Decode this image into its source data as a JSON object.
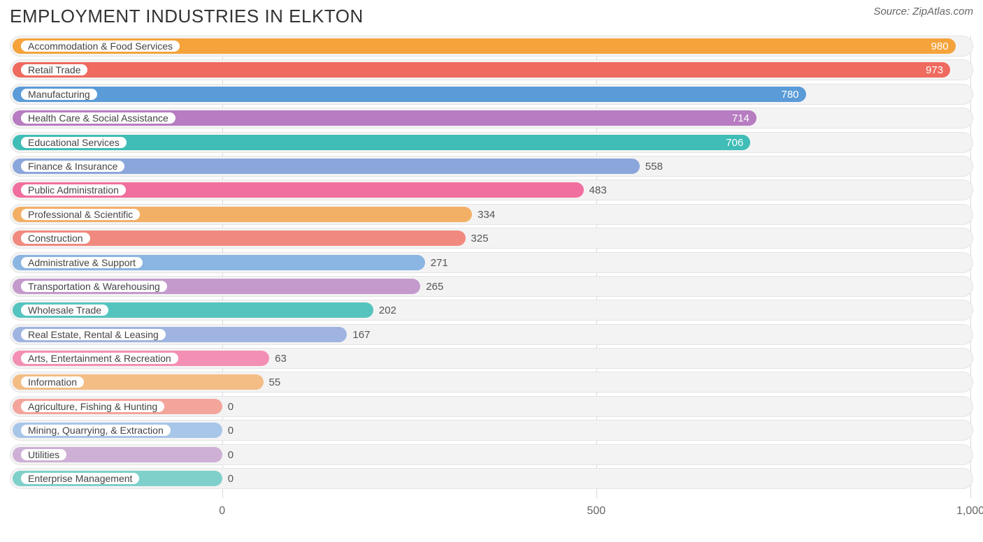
{
  "title": "EMPLOYMENT INDUSTRIES IN ELKTON",
  "source": "Source: ZipAtlas.com",
  "chart": {
    "type": "bar-horizontal",
    "background_color": "#ffffff",
    "track_bg": "#f3f3f3",
    "track_border": "#e4e4e4",
    "grid_color": "#d9d9d9",
    "bar_origin_value": -280,
    "x_ticks": [
      {
        "value": 0,
        "label": "0"
      },
      {
        "value": 500,
        "label": "500"
      },
      {
        "value": 1000,
        "label": "1,000"
      }
    ],
    "x_max_value": 1000,
    "label_fontsize": 14,
    "value_fontsize": 15,
    "title_fontsize": 26,
    "rows": [
      {
        "label": "Accommodation & Food Services",
        "value": 980,
        "color": "#f5a33b",
        "value_inside": true
      },
      {
        "label": "Retail Trade",
        "value": 973,
        "color": "#ef6a5f",
        "value_inside": true
      },
      {
        "label": "Manufacturing",
        "value": 780,
        "color": "#5a9bd8",
        "value_inside": true
      },
      {
        "label": "Health Care & Social Assistance",
        "value": 714,
        "color": "#b77cc1",
        "value_inside": true
      },
      {
        "label": "Educational Services",
        "value": 706,
        "color": "#3fbdb6",
        "value_inside": true
      },
      {
        "label": "Finance & Insurance",
        "value": 558,
        "color": "#8ba6db",
        "value_inside": false
      },
      {
        "label": "Public Administration",
        "value": 483,
        "color": "#f16f9f",
        "value_inside": false
      },
      {
        "label": "Professional & Scientific",
        "value": 334,
        "color": "#f2b066",
        "value_inside": false
      },
      {
        "label": "Construction",
        "value": 325,
        "color": "#f08a7f",
        "value_inside": false
      },
      {
        "label": "Administrative & Support",
        "value": 271,
        "color": "#8bb5e2",
        "value_inside": false
      },
      {
        "label": "Transportation & Warehousing",
        "value": 265,
        "color": "#c49acd",
        "value_inside": false
      },
      {
        "label": "Wholesale Trade",
        "value": 202,
        "color": "#55c4be",
        "value_inside": false
      },
      {
        "label": "Real Estate, Rental & Leasing",
        "value": 167,
        "color": "#9fb4e0",
        "value_inside": false
      },
      {
        "label": "Arts, Entertainment & Recreation",
        "value": 63,
        "color": "#f38fb5",
        "value_inside": false
      },
      {
        "label": "Information",
        "value": 55,
        "color": "#f3bd85",
        "value_inside": false
      },
      {
        "label": "Agriculture, Fishing & Hunting",
        "value": 0,
        "color": "#f3a59c",
        "value_inside": false
      },
      {
        "label": "Mining, Quarrying, & Extraction",
        "value": 0,
        "color": "#a8c6e8",
        "value_inside": false
      },
      {
        "label": "Utilities",
        "value": 0,
        "color": "#ceb0d6",
        "value_inside": false
      },
      {
        "label": "Enterprise Management",
        "value": 0,
        "color": "#7fd0ca",
        "value_inside": false
      }
    ]
  }
}
